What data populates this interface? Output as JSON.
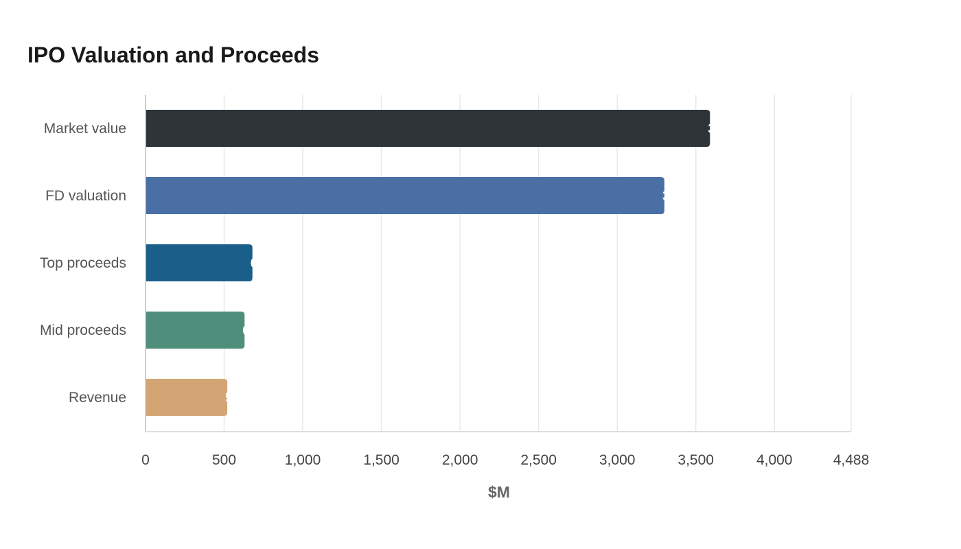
{
  "chart_data": {
    "type": "bar",
    "orientation": "horizontal",
    "title": "IPO Valuation and Proceeds",
    "xlabel": "$M",
    "ylabel": "",
    "categories": [
      "Market value",
      "FD valuation",
      "Top proceeds",
      "Mid proceeds",
      "Revenue"
    ],
    "values": [
      3590,
      3300,
      680,
      630,
      520
    ],
    "colors": [
      "#2e3437",
      "#4a6fa5",
      "#1a5f8a",
      "#4e8e7a",
      "#d4a574"
    ],
    "xlim": [
      0,
      4488
    ],
    "xticks": [
      0,
      500,
      1000,
      1500,
      2000,
      2500,
      3000,
      3500,
      4000,
      4488
    ],
    "xtick_labels": [
      "0",
      "500",
      "1,000",
      "1,500",
      "2,000",
      "2,500",
      "3,000",
      "3,500",
      "4,000",
      "4,488"
    ],
    "grid": true,
    "legend": "none"
  }
}
